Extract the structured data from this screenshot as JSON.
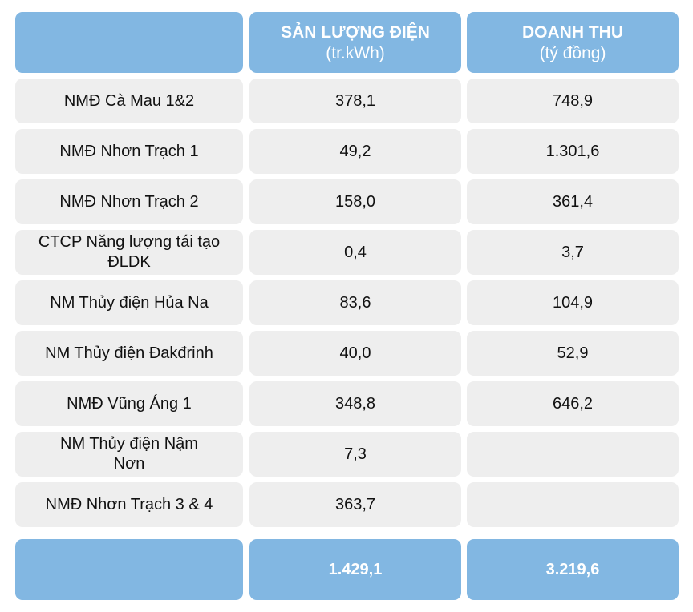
{
  "header": {
    "col1": "",
    "col2_title": "SẢN LƯỢNG ĐIỆN",
    "col2_unit": "(tr.kWh)",
    "col3_title": "DOANH THU",
    "col3_unit": "(tỷ đồng)"
  },
  "rows": [
    {
      "name": "NMĐ Cà Mau 1&2",
      "output": "378,1",
      "revenue": "748,9"
    },
    {
      "name": "NMĐ Nhơn Trạch 1",
      "output": "49,2",
      "revenue": "1.301,6"
    },
    {
      "name": "NMĐ Nhơn Trạch 2",
      "output": "158,0",
      "revenue": "361,4"
    },
    {
      "name": "CTCP Năng lượng tái tạo ĐLDK",
      "output": "0,4",
      "revenue": "3,7"
    },
    {
      "name": "NM Thủy điện Hủa Na",
      "output": "83,6",
      "revenue": "104,9"
    },
    {
      "name": "NM Thủy điện Đakđrinh",
      "output": "40,0",
      "revenue": "52,9"
    },
    {
      "name": "NMĐ Vũng Áng 1",
      "output": "348,8",
      "revenue": "646,2"
    },
    {
      "name": "NM Thủy điện Nậm Nơn",
      "output": "7,3",
      "revenue": ""
    },
    {
      "name": "NMĐ Nhơn Trạch 3 & 4",
      "output": "363,7",
      "revenue": ""
    }
  ],
  "total": {
    "label": "",
    "output": "1.429,1",
    "revenue": "3.219,6"
  },
  "colors": {
    "header_bg": "#82b7e2",
    "row_bg": "#eeeeee",
    "header_text": "#ffffff",
    "body_text": "#111111"
  }
}
